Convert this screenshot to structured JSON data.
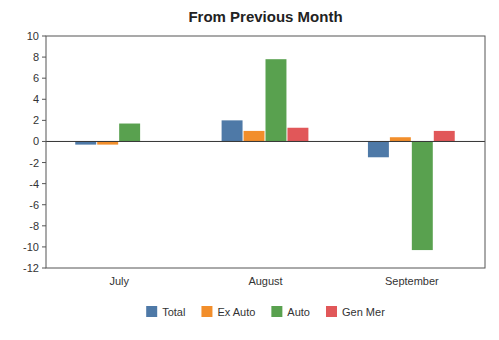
{
  "chart_data": {
    "type": "bar",
    "title": "From Previous Month",
    "categories": [
      "July",
      "August",
      "September"
    ],
    "series": [
      {
        "name": "Total",
        "color": "#4e79a7",
        "values": [
          -0.3,
          2.0,
          -1.5
        ]
      },
      {
        "name": "Ex Auto",
        "color": "#f28e2b",
        "values": [
          -0.3,
          1.0,
          0.4
        ]
      },
      {
        "name": "Auto",
        "color": "#59a14f",
        "values": [
          1.7,
          7.8,
          -10.3
        ]
      },
      {
        "name": "Gen Mer",
        "color": "#e15759",
        "values": [
          0.0,
          1.3,
          1.0
        ]
      }
    ],
    "ylim": [
      -12,
      10
    ],
    "yticks": [
      -12,
      -10,
      -8,
      -6,
      -4,
      -2,
      0,
      2,
      4,
      6,
      8,
      10
    ],
    "grid": false,
    "legend": "bottom"
  }
}
